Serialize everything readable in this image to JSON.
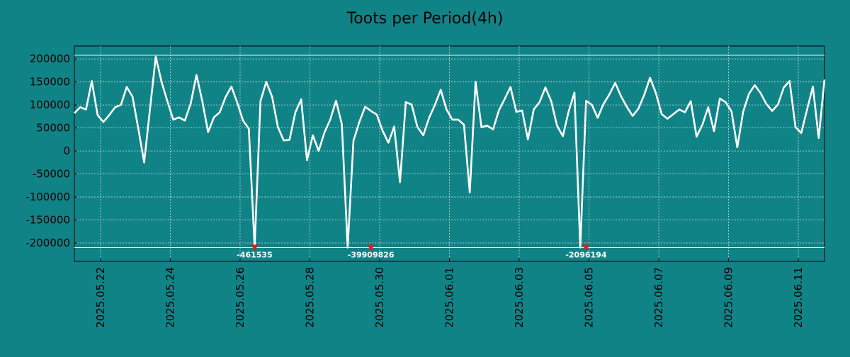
{
  "chart_data": {
    "type": "line",
    "title": "Toots per Period(4h)",
    "xlabel": "",
    "ylabel": "",
    "x_range": [
      "2025-05-21T06:00",
      "2025-06-11T18:00"
    ],
    "ylim": [
      -240000,
      228000
    ],
    "grid": true,
    "yticks": [
      -200000,
      -150000,
      -100000,
      -50000,
      0,
      50000,
      100000,
      150000,
      200000
    ],
    "ytick_labels": [
      "-200000",
      "-150000",
      "-100000",
      "-50000",
      "0",
      "50000",
      "100000",
      "150000",
      "200000"
    ],
    "xticks": [
      "2025-05-22",
      "2025-05-24",
      "2025-05-26",
      "2025-05-28",
      "2025-05-30",
      "2025-06-01",
      "2025-06-03",
      "2025-06-05",
      "2025-06-07",
      "2025-06-09",
      "2025-06-11"
    ],
    "xtick_labels": [
      "2025.05.22",
      "2025.05.24",
      "2025.05.26",
      "2025.05.28",
      "2025.05.30",
      "2025.06.01",
      "2025.06.03",
      "2025.06.05",
      "2025.06.07",
      "2025.06.09",
      "2025.06.11"
    ],
    "reference_lines": [
      208000,
      -210000
    ],
    "series": [
      {
        "color": "#ffffff",
        "x": [
          "2025-05-21T06:00",
          "2025-05-21T10:00",
          "2025-05-21T14:00",
          "2025-05-21T18:00",
          "2025-05-21T22:00",
          "2025-05-22T02:00",
          "2025-05-22T06:00",
          "2025-05-22T10:00",
          "2025-05-22T14:00",
          "2025-05-22T18:00",
          "2025-05-22T22:00",
          "2025-05-23T02:00",
          "2025-05-23T06:00",
          "2025-05-23T10:00",
          "2025-05-23T14:00",
          "2025-05-23T18:00",
          "2025-05-23T22:00",
          "2025-05-24T02:00",
          "2025-05-24T06:00",
          "2025-05-24T10:00",
          "2025-05-24T14:00",
          "2025-05-24T18:00",
          "2025-05-24T22:00",
          "2025-05-25T02:00",
          "2025-05-25T06:00",
          "2025-05-25T10:00",
          "2025-05-25T14:00",
          "2025-05-25T18:00",
          "2025-05-25T22:00",
          "2025-05-26T02:00",
          "2025-05-26T06:00",
          "2025-05-26T10:00",
          "2025-05-26T14:00",
          "2025-05-26T18:00",
          "2025-05-26T22:00",
          "2025-05-27T02:00",
          "2025-05-27T06:00",
          "2025-05-27T10:00",
          "2025-05-27T14:00",
          "2025-05-27T18:00",
          "2025-05-27T22:00",
          "2025-05-28T02:00",
          "2025-05-28T06:00",
          "2025-05-28T10:00",
          "2025-05-28T14:00",
          "2025-05-28T18:00",
          "2025-05-28T22:00",
          "2025-05-29T02:00",
          "2025-05-29T06:00",
          "2025-05-29T10:00",
          "2025-05-29T14:00",
          "2025-05-29T18:00",
          "2025-05-29T22:00",
          "2025-05-30T02:00",
          "2025-05-30T06:00",
          "2025-05-30T10:00",
          "2025-05-30T14:00",
          "2025-05-30T18:00",
          "2025-05-30T22:00",
          "2025-05-31T02:00",
          "2025-05-31T06:00",
          "2025-05-31T10:00",
          "2025-05-31T14:00",
          "2025-05-31T18:00",
          "2025-05-31T22:00",
          "2025-06-01T02:00",
          "2025-06-01T06:00",
          "2025-06-01T10:00",
          "2025-06-01T14:00",
          "2025-06-01T18:00",
          "2025-06-01T22:00",
          "2025-06-02T02:00",
          "2025-06-02T06:00",
          "2025-06-02T10:00",
          "2025-06-02T14:00",
          "2025-06-02T18:00",
          "2025-06-02T22:00",
          "2025-06-03T02:00",
          "2025-06-03T06:00",
          "2025-06-03T10:00",
          "2025-06-03T14:00",
          "2025-06-03T18:00",
          "2025-06-03T22:00",
          "2025-06-04T02:00",
          "2025-06-04T06:00",
          "2025-06-04T10:00",
          "2025-06-04T14:00",
          "2025-06-04T18:00",
          "2025-06-04T22:00",
          "2025-06-05T02:00",
          "2025-06-05T06:00",
          "2025-06-05T10:00",
          "2025-06-05T14:00",
          "2025-06-05T18:00",
          "2025-06-05T22:00",
          "2025-06-06T02:00",
          "2025-06-06T06:00",
          "2025-06-06T10:00",
          "2025-06-06T14:00",
          "2025-06-06T18:00",
          "2025-06-06T22:00",
          "2025-06-07T02:00",
          "2025-06-07T06:00",
          "2025-06-07T10:00",
          "2025-06-07T14:00",
          "2025-06-07T18:00",
          "2025-06-07T22:00",
          "2025-06-08T02:00",
          "2025-06-08T06:00",
          "2025-06-08T10:00",
          "2025-06-08T14:00",
          "2025-06-08T18:00",
          "2025-06-08T22:00",
          "2025-06-09T02:00",
          "2025-06-09T06:00",
          "2025-06-09T10:00",
          "2025-06-09T14:00",
          "2025-06-09T18:00",
          "2025-06-09T22:00",
          "2025-06-10T02:00",
          "2025-06-10T06:00",
          "2025-06-10T10:00",
          "2025-06-10T14:00",
          "2025-06-10T18:00",
          "2025-06-10T22:00",
          "2025-06-11T02:00",
          "2025-06-11T06:00",
          "2025-06-11T10:00",
          "2025-06-11T14:00",
          "2025-06-11T18:00"
        ],
        "y": [
          82000,
          95000,
          90000,
          152000,
          78000,
          63000,
          78000,
          95000,
          100000,
          139000,
          118000,
          48000,
          -25000,
          90000,
          205000,
          150000,
          108000,
          68000,
          73000,
          66000,
          103000,
          165000,
          108000,
          41000,
          73000,
          84000,
          117000,
          140000,
          105000,
          66000,
          48000,
          -210000,
          108000,
          150000,
          118000,
          52000,
          23000,
          24000,
          84000,
          112000,
          -20000,
          34000,
          0,
          40000,
          68000,
          109000,
          58000,
          -210000,
          22000,
          63000,
          96000,
          87000,
          79000,
          44000,
          18000,
          53000,
          -68000,
          106000,
          101000,
          52000,
          34000,
          72000,
          100000,
          133000,
          90000,
          68000,
          68000,
          57000,
          -90000,
          150000,
          52000,
          55000,
          47000,
          88000,
          113000,
          139000,
          85000,
          88000,
          25000,
          90000,
          106000,
          138000,
          108000,
          55000,
          32000,
          86000,
          127000,
          -210000,
          109000,
          100000,
          72000,
          102000,
          123000,
          148000,
          119000,
          96000,
          76000,
          92000,
          122000,
          159000,
          126000,
          80000,
          70000,
          80000,
          90000,
          84000,
          108000,
          31000,
          57000,
          95000,
          43000,
          114000,
          106000,
          86000,
          8000,
          85000,
          124000,
          143000,
          126000,
          102000,
          87000,
          101000,
          138000,
          152000,
          52000,
          39000,
          90000,
          140000,
          28000,
          155000
        ]
      }
    ],
    "annotations": [
      {
        "x": "2025-05-26T10:00",
        "y": -210000,
        "text": "-461535"
      },
      {
        "x": "2025-05-29T18:00",
        "y": -210000,
        "text": "-39909826"
      },
      {
        "x": "2025-06-04T22:00",
        "y": -210000,
        "text": "-2096194"
      }
    ]
  }
}
